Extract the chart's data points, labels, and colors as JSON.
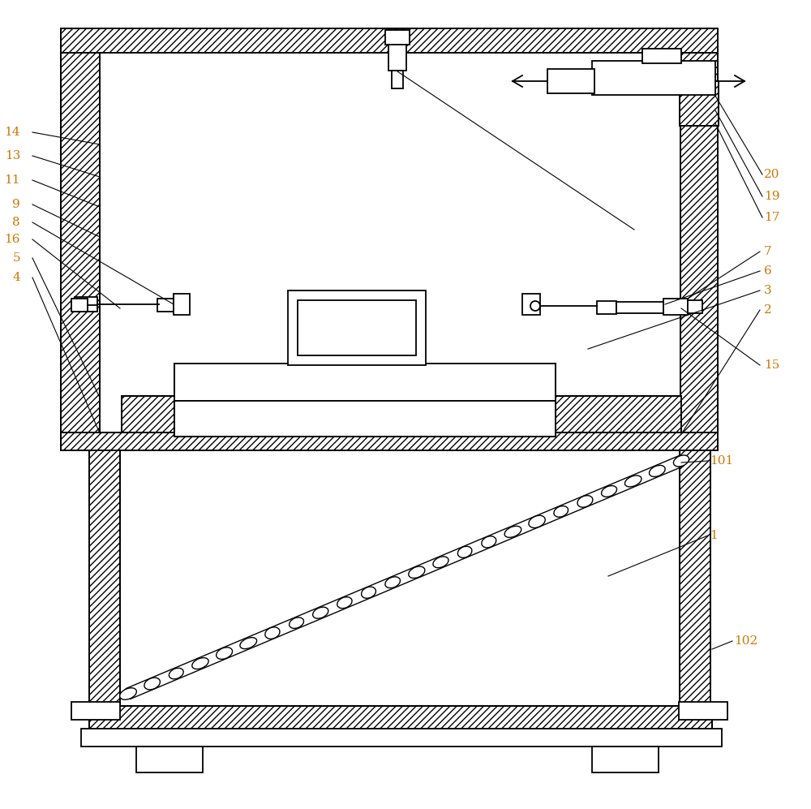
{
  "bg": "#ffffff",
  "lc": "#000000",
  "nc": "#cc7700",
  "figsize": [
    10.0,
    9.97
  ],
  "dpi": 100,
  "lw": 1.3,
  "lw_thin": 0.8,
  "lw_med": 1.0
}
